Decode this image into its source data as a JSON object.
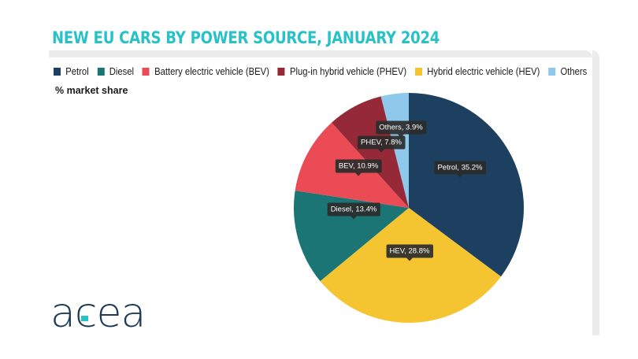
{
  "title": "NEW EU CARS BY POWER SOURCE, JANUARY 2024",
  "subtitle": "% market share",
  "logo_text": "acea",
  "legend": [
    {
      "label": "Petrol",
      "color": "#1d4060"
    },
    {
      "label": "Diesel",
      "color": "#1c7575"
    },
    {
      "label": "Battery electric vehicle (BEV)",
      "color": "#ea4b55"
    },
    {
      "label": "Plug-in hybrid vehicle (PHEV)",
      "color": "#962937"
    },
    {
      "label": "Hybrid electric vehicle (HEV)",
      "color": "#f5c531"
    },
    {
      "label": "Others",
      "color": "#8ec8ea"
    }
  ],
  "chart_data": {
    "type": "pie",
    "title": "NEW EU CARS BY POWER SOURCE, JANUARY 2024",
    "subtitle": "% market share",
    "unit": "%",
    "slices": [
      {
        "name": "Petrol",
        "value": 35.2,
        "label": "Petrol, 35.2%",
        "color": "#1d4060"
      },
      {
        "name": "HEV",
        "value": 28.8,
        "label": "HEV, 28.8%",
        "color": "#f5c531"
      },
      {
        "name": "Diesel",
        "value": 13.4,
        "label": "Diesel, 13.4%",
        "color": "#1c7575"
      },
      {
        "name": "BEV",
        "value": 10.9,
        "label": "BEV, 10.9%",
        "color": "#ea4b55"
      },
      {
        "name": "PHEV",
        "value": 7.8,
        "label": "PHEV, 7.8%",
        "color": "#962937"
      },
      {
        "name": "Others",
        "value": 3.9,
        "label": "Others, 3.9%",
        "color": "#8ec8ea"
      }
    ],
    "legend_position": "top"
  }
}
